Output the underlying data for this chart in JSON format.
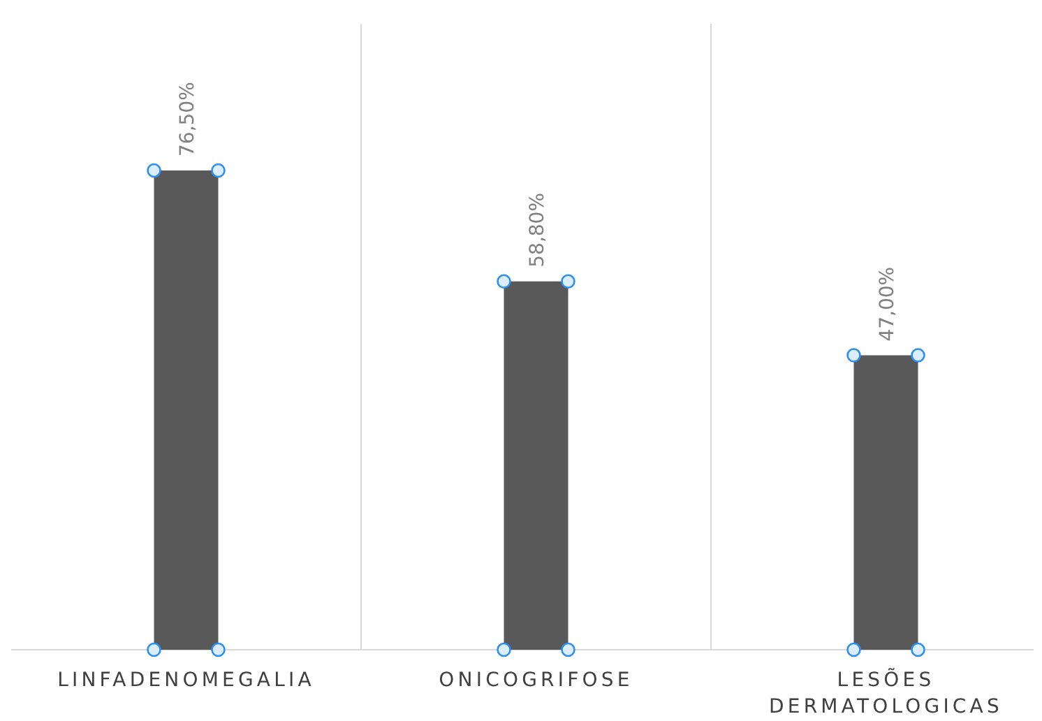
{
  "chart_data": {
    "type": "bar",
    "categories": [
      "LINFADENOMEGALIA",
      "ONICOGRIFOSE",
      "LESÕES DERMATOLOGICAS"
    ],
    "values": [
      76.5,
      58.8,
      47.0
    ],
    "value_labels": [
      "76,50%",
      "58,80%",
      "47,00%"
    ],
    "color": "#595959",
    "grid": "x"
  }
}
